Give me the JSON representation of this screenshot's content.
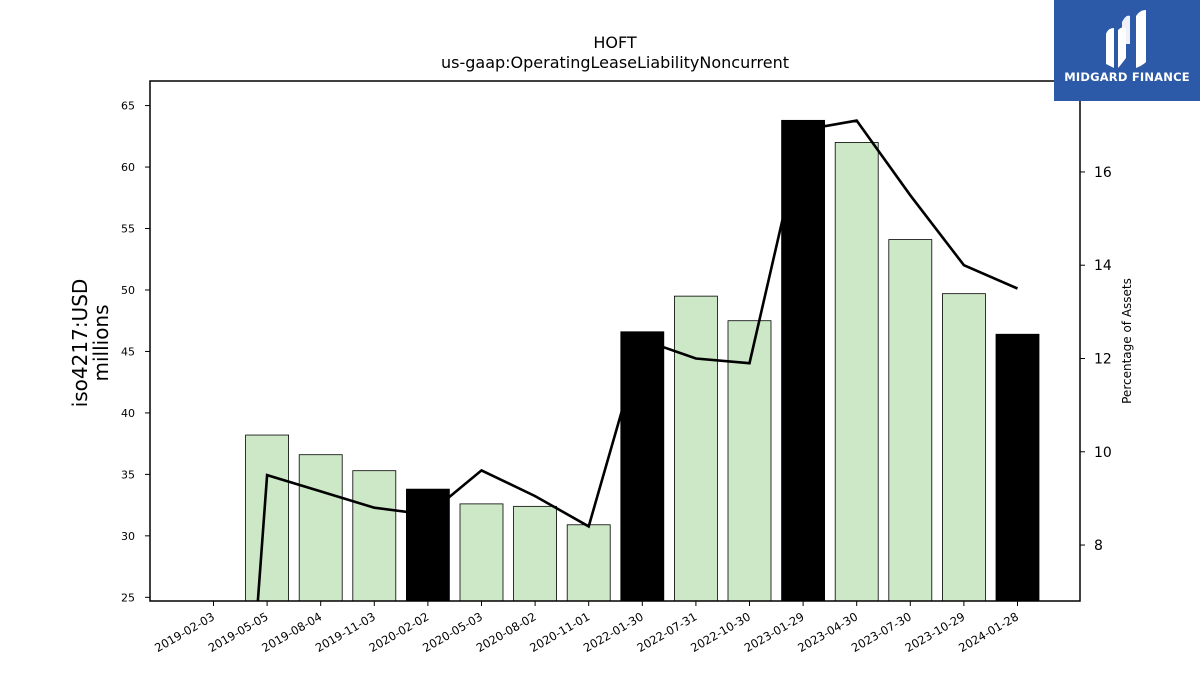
{
  "chart_data": {
    "type": "bar",
    "title": "HOFT",
    "subtitle": "us-gaap:OperatingLeaseLiabilityNoncurrent",
    "ylabel_line1": "iso4217:USD",
    "ylabel_line2": "millions",
    "y2label": "Percentage of Assets",
    "categories": [
      "2019-02-03",
      "2019-05-05",
      "2019-08-04",
      "2019-11-03",
      "2020-02-02",
      "2020-05-03",
      "2020-08-02",
      "2020-11-01",
      "2022-01-30",
      "2022-07-31",
      "2022-10-30",
      "2023-01-29",
      "2023-04-30",
      "2023-07-30",
      "2023-10-29",
      "2024-01-28"
    ],
    "series": [
      {
        "type": "bar",
        "values": [
          null,
          38.2,
          36.6,
          35.3,
          33.8,
          32.6,
          32.4,
          30.9,
          46.6,
          49.5,
          47.5,
          63.8,
          62.0,
          54.1,
          49.7,
          46.4
        ],
        "highlight": [
          false,
          false,
          false,
          false,
          true,
          false,
          false,
          false,
          true,
          false,
          false,
          true,
          false,
          false,
          false,
          true
        ]
      },
      {
        "type": "line",
        "axis": "right",
        "values": [
          null,
          9.5,
          9.15,
          8.8,
          8.65,
          9.6,
          9.05,
          8.4,
          12.4,
          12.0,
          11.9,
          16.9,
          17.1,
          15.5,
          14.0,
          13.5
        ]
      }
    ],
    "ylim": [
      24.7,
      67
    ],
    "y_ticks": [
      25,
      30,
      35,
      40,
      45,
      50,
      55,
      60,
      65
    ],
    "y2lim": [
      6.8,
      17.95
    ],
    "y2_ticks": [
      8,
      10,
      12,
      14,
      16
    ],
    "colors": {
      "bar": "#cde8c6",
      "bar_highlight": "#000000",
      "line": "#000000",
      "logo_bg": "#2c5aa8"
    }
  },
  "logo": {
    "text": "MIDGARD FINANCE"
  }
}
